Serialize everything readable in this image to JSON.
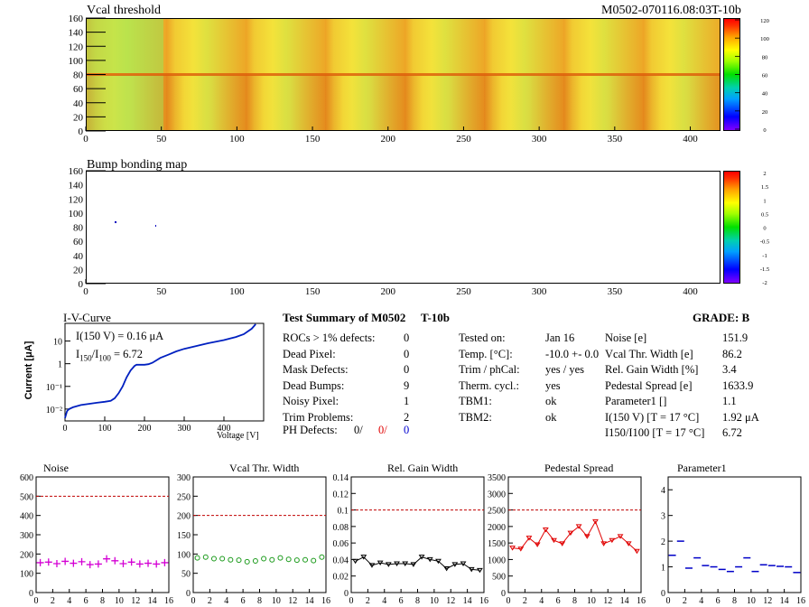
{
  "map1": {
    "title": "Vcal threshold",
    "module_label": "M0502-070116.08:03T-10b",
    "x_ticks": [
      "0",
      "50",
      "100",
      "150",
      "200",
      "250",
      "300",
      "350",
      "400"
    ],
    "y_ticks": [
      "0",
      "20",
      "40",
      "60",
      "80",
      "100",
      "120",
      "140",
      "160"
    ],
    "z_ticks": [
      "0",
      "20",
      "40",
      "60",
      "80",
      "100",
      "120"
    ]
  },
  "map2": {
    "title": "Bump bonding map",
    "x_ticks": [
      "0",
      "50",
      "100",
      "150",
      "200",
      "250",
      "300",
      "350",
      "400"
    ],
    "y_ticks": [
      "0",
      "20",
      "40",
      "60",
      "80",
      "100",
      "120",
      "140",
      "160"
    ],
    "z_ticks": [
      "-2",
      "-1.5",
      "-1",
      "-0.5",
      "0",
      "0.5",
      "1",
      "1.5",
      "2"
    ]
  },
  "iv": {
    "title": "I-V-Curve",
    "ylabel": "Current [μA]",
    "xlabel": "Voltage [V]",
    "annot1": "I(150 V) = 0.16 μA",
    "annot2_main": "I",
    "annot2_sub1": "150",
    "annot2_sep": "/I",
    "annot2_sub2": "100",
    "annot2_val": "=  6.72",
    "x_ticks": [
      "0",
      "100",
      "200",
      "300",
      "400"
    ],
    "y_ticks": [
      "10⁻²",
      "10⁻¹",
      "1",
      "10"
    ]
  },
  "summary": {
    "title": "Test Summary of M0502",
    "subtitle": "T-10b",
    "grade": "GRADE:  B",
    "left": [
      {
        "label": "ROCs > 1% defects:",
        "value": "0"
      },
      {
        "label": "Dead Pixel:",
        "value": "0"
      },
      {
        "label": "Mask Defects:",
        "value": "0"
      },
      {
        "label": "Dead Bumps:",
        "value": "9"
      },
      {
        "label": "Noisy Pixel:",
        "value": "1"
      },
      {
        "label": "Trim Problems:",
        "value": "2"
      }
    ],
    "ph_label": "PH Defects:",
    "ph_v1": "0/",
    "ph_v2": "0/",
    "ph_v3": "0",
    "middle": [
      {
        "label": "Tested on:",
        "value": "Jan 16"
      },
      {
        "label": "Temp. [°C]:",
        "value": "-10.0 +- 0.0"
      },
      {
        "label": "Trim / phCal:",
        "value": "yes / yes"
      },
      {
        "label": "Therm. cycl.:",
        "value": "yes"
      },
      {
        "label": "TBM1:",
        "value": "ok"
      },
      {
        "label": "TBM2:",
        "value": "ok"
      }
    ],
    "right": [
      {
        "label": "Noise [e]",
        "value": "151.9"
      },
      {
        "label": "Vcal Thr. Width [e]",
        "value": "86.2"
      },
      {
        "label": "Rel. Gain Width [%]",
        "value": "3.4"
      },
      {
        "label": "Pedestal Spread [e]",
        "value": "1633.9"
      },
      {
        "label": "Parameter1 []",
        "value": "1.1"
      },
      {
        "label": "I(150 V) [T = 17 °C]",
        "value": "1.92 μA"
      },
      {
        "label": "I150/I100  [T = 17 °C]",
        "value": "6.72"
      }
    ]
  },
  "colors": {
    "noise": "#d400d4",
    "vcal": "#1a9a1a",
    "gain": "#000000",
    "pedestal": "#e00000",
    "param": "#0000c8",
    "iv": "#0020c0",
    "limit": "#c00000"
  },
  "chart_data": [
    {
      "type": "scatter",
      "title": "Noise",
      "x": [
        0,
        1,
        2,
        3,
        4,
        5,
        6,
        7,
        8,
        9,
        10,
        11,
        12,
        13,
        14,
        15
      ],
      "y": [
        155,
        158,
        150,
        162,
        152,
        160,
        145,
        148,
        175,
        165,
        150,
        158,
        148,
        152,
        148,
        155
      ],
      "limit": 500,
      "xlim": [
        0,
        16
      ],
      "ylim": [
        0,
        600
      ],
      "x_ticks": [
        "0",
        "2",
        "4",
        "6",
        "8",
        "10",
        "12",
        "14",
        "16"
      ],
      "y_ticks": [
        "0",
        "100",
        "200",
        "300",
        "400",
        "500",
        "600"
      ]
    },
    {
      "type": "scatter",
      "title": "Vcal Thr. Width",
      "x": [
        0,
        1,
        2,
        3,
        4,
        5,
        6,
        7,
        8,
        9,
        10,
        11,
        12,
        13,
        14,
        15
      ],
      "y": [
        90,
        92,
        88,
        88,
        85,
        84,
        80,
        82,
        88,
        85,
        90,
        86,
        84,
        85,
        83,
        92
      ],
      "limit": 200,
      "xlim": [
        0,
        16
      ],
      "ylim": [
        0,
        300
      ],
      "x_ticks": [
        "0",
        "2",
        "4",
        "6",
        "8",
        "10",
        "12",
        "14",
        "16"
      ],
      "y_ticks": [
        "0",
        "50",
        "100",
        "150",
        "200",
        "250",
        "300"
      ]
    },
    {
      "type": "line",
      "title": "Rel. Gain Width",
      "x": [
        0,
        1,
        2,
        3,
        4,
        5,
        6,
        7,
        8,
        9,
        10,
        11,
        12,
        13,
        14,
        15
      ],
      "y": [
        0.038,
        0.043,
        0.033,
        0.036,
        0.034,
        0.035,
        0.035,
        0.034,
        0.043,
        0.04,
        0.038,
        0.029,
        0.034,
        0.035,
        0.028,
        0.027
      ],
      "limit": 0.1,
      "xlim": [
        0,
        16
      ],
      "ylim": [
        0,
        0.14
      ],
      "x_ticks": [
        "0",
        "2",
        "4",
        "6",
        "8",
        "10",
        "12",
        "14",
        "16"
      ],
      "y_ticks": [
        "0",
        "0.02",
        "0.04",
        "0.06",
        "0.08",
        "0.1",
        "0.12",
        "0.14"
      ]
    },
    {
      "type": "line",
      "title": "Pedestal Spread",
      "x": [
        0,
        1,
        2,
        3,
        4,
        5,
        6,
        7,
        8,
        9,
        10,
        11,
        12,
        13,
        14,
        15
      ],
      "y": [
        1350,
        1320,
        1650,
        1450,
        1900,
        1580,
        1480,
        1800,
        2000,
        1700,
        2150,
        1480,
        1580,
        1700,
        1480,
        1250
      ],
      "limit": 2500,
      "xlim": [
        0,
        16
      ],
      "ylim": [
        0,
        3500
      ],
      "x_ticks": [
        "0",
        "2",
        "4",
        "6",
        "8",
        "10",
        "12",
        "14",
        "16"
      ],
      "y_ticks": [
        "0",
        "500",
        "1000",
        "1500",
        "2000",
        "2500",
        "3000",
        "3500"
      ]
    },
    {
      "type": "scatter",
      "title": "Parameter1",
      "x": [
        0,
        1,
        2,
        3,
        4,
        5,
        6,
        7,
        8,
        9,
        10,
        11,
        12,
        13,
        14,
        15
      ],
      "y": [
        1.45,
        2.0,
        0.95,
        1.35,
        1.05,
        1.0,
        0.9,
        0.82,
        1.0,
        1.35,
        0.82,
        1.08,
        1.05,
        1.02,
        1.0,
        0.78
      ],
      "xlim": [
        0,
        16
      ],
      "ylim": [
        0,
        4.5
      ],
      "x_ticks": [
        "0",
        "2",
        "4",
        "6",
        "8",
        "10",
        "12",
        "14",
        "16"
      ],
      "y_ticks": [
        "0",
        "1",
        "2",
        "3",
        "4"
      ]
    },
    {
      "type": "line",
      "title": "I-V-Curve",
      "x": [
        0,
        5,
        10,
        20,
        40,
        60,
        80,
        100,
        115,
        125,
        135,
        145,
        155,
        165,
        175,
        180,
        190,
        200,
        210,
        220,
        240,
        260,
        280,
        300,
        330,
        360,
        400,
        430,
        450,
        470,
        480
      ],
      "y": [
        0.004,
        0.008,
        0.01,
        0.012,
        0.015,
        0.017,
        0.019,
        0.021,
        0.023,
        0.03,
        0.05,
        0.1,
        0.25,
        0.5,
        0.8,
        0.9,
        0.9,
        0.9,
        0.95,
        1.1,
        1.8,
        2.5,
        3.5,
        4.5,
        6,
        8,
        11,
        15,
        20,
        35,
        55
      ],
      "xlim": [
        0,
        500
      ],
      "ylim": [
        0.003,
        60
      ],
      "log_y": true
    }
  ]
}
